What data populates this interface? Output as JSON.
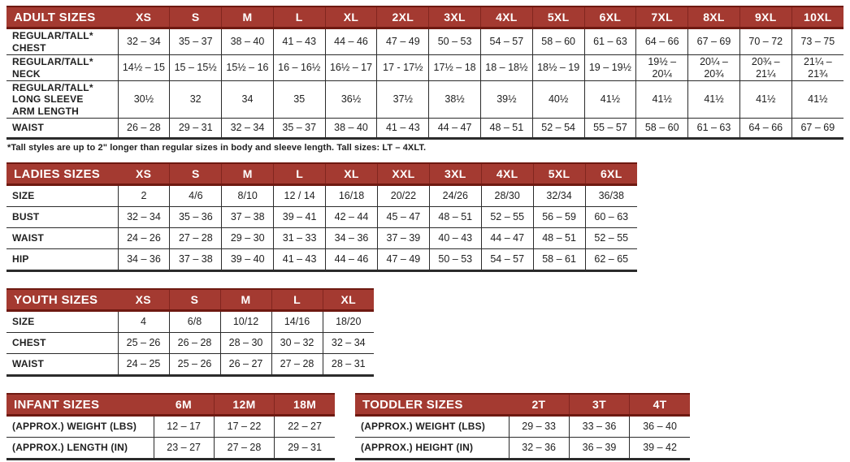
{
  "colors": {
    "header_bg": "#A43A31",
    "header_border": "#6E1911",
    "grid_line": "#2b2b2b",
    "text": "#1f1f1f",
    "header_text": "#ffffff"
  },
  "footnote": "*Tall styles are up to 2\" longer than regular sizes in body and sleeve length. Tall sizes: LT – 4XLT.",
  "tables": {
    "adult": {
      "title": "ADULT SIZES",
      "columns": [
        "XS",
        "S",
        "M",
        "L",
        "XL",
        "2XL",
        "3XL",
        "4XL",
        "5XL",
        "6XL",
        "7XL",
        "8XL",
        "9XL",
        "10XL"
      ],
      "rows": [
        {
          "label": "REGULAR/TALL*\nCHEST",
          "values": [
            "32 – 34",
            "35 – 37",
            "38 – 40",
            "41 – 43",
            "44 – 46",
            "47 – 49",
            "50 – 53",
            "54 – 57",
            "58 – 60",
            "61 – 63",
            "64 – 66",
            "67 – 69",
            "70 – 72",
            "73 – 75"
          ]
        },
        {
          "label": "REGULAR/TALL*\nNECK",
          "values": [
            "14½ – 15",
            "15 – 15½",
            "15½ – 16",
            "16 – 16½",
            "16½ – 17",
            "17 - 17½",
            "17½ – 18",
            "18 – 18½",
            "18½ – 19",
            "19 – 19½",
            "19½ –\n20¼",
            "20¼ –\n20¾",
            "20¾ –\n21¼",
            "21¼ –\n21¾"
          ]
        },
        {
          "label": "REGULAR/TALL*\nLONG SLEEVE\nARM LENGTH",
          "values": [
            "30½",
            "32",
            "34",
            "35",
            "36½",
            "37½",
            "38½",
            "39½",
            "40½",
            "41½",
            "41½",
            "41½",
            "41½",
            "41½"
          ]
        },
        {
          "label": "WAIST",
          "values": [
            "26 – 28",
            "29 – 31",
            "32 – 34",
            "35 – 37",
            "38 – 40",
            "41 – 43",
            "44 – 47",
            "48 – 51",
            "52 – 54",
            "55 – 57",
            "58 – 60",
            "61 – 63",
            "64 – 66",
            "67 – 69"
          ]
        }
      ]
    },
    "ladies": {
      "title": "LADIES SIZES",
      "columns": [
        "XS",
        "S",
        "M",
        "L",
        "XL",
        "XXL",
        "3XL",
        "4XL",
        "5XL",
        "6XL"
      ],
      "rows": [
        {
          "label": "SIZE",
          "values": [
            "2",
            "4/6",
            "8/10",
            "12 / 14",
            "16/18",
            "20/22",
            "24/26",
            "28/30",
            "32/34",
            "36/38"
          ]
        },
        {
          "label": "BUST",
          "values": [
            "32 – 34",
            "35 – 36",
            "37 – 38",
            "39 – 41",
            "42 – 44",
            "45 – 47",
            "48 – 51",
            "52 – 55",
            "56 – 59",
            "60 – 63"
          ]
        },
        {
          "label": "WAIST",
          "values": [
            "24 – 26",
            "27 – 28",
            "29 – 30",
            "31 – 33",
            "34 – 36",
            "37 – 39",
            "40 – 43",
            "44 – 47",
            "48 – 51",
            "52 – 55"
          ]
        },
        {
          "label": "HIP",
          "values": [
            "34 – 36",
            "37 – 38",
            "39 – 40",
            "41 – 43",
            "44 – 46",
            "47 – 49",
            "50 – 53",
            "54 – 57",
            "58 – 61",
            "62 – 65"
          ]
        }
      ]
    },
    "youth": {
      "title": "YOUTH SIZES",
      "columns": [
        "XS",
        "S",
        "M",
        "L",
        "XL"
      ],
      "rows": [
        {
          "label": "SIZE",
          "values": [
            "4",
            "6/8",
            "10/12",
            "14/16",
            "18/20"
          ]
        },
        {
          "label": "CHEST",
          "values": [
            "25 – 26",
            "26 – 28",
            "28 – 30",
            "30 – 32",
            "32 – 34"
          ]
        },
        {
          "label": "WAIST",
          "values": [
            "24 – 25",
            "25 – 26",
            "26 – 27",
            "27 – 28",
            "28 – 31"
          ]
        }
      ]
    },
    "infant": {
      "title": "INFANT SIZES",
      "columns": [
        "6M",
        "12M",
        "18M"
      ],
      "rows": [
        {
          "label": "(APPROX.) WEIGHT (LBS)",
          "values": [
            "12 – 17",
            "17 – 22",
            "22 – 27"
          ]
        },
        {
          "label": "(APPROX.) LENGTH (IN)",
          "values": [
            "23 – 27",
            "27 – 28",
            "29 – 31"
          ]
        }
      ]
    },
    "toddler": {
      "title": "TODDLER SIZES",
      "columns": [
        "2T",
        "3T",
        "4T"
      ],
      "rows": [
        {
          "label": "(APPROX.) WEIGHT (LBS)",
          "values": [
            "29 – 33",
            "33 – 36",
            "36 – 40"
          ]
        },
        {
          "label": "(APPROX.) HEIGHT (IN)",
          "values": [
            "32 – 36",
            "36 – 39",
            "39 – 42"
          ]
        }
      ]
    }
  }
}
